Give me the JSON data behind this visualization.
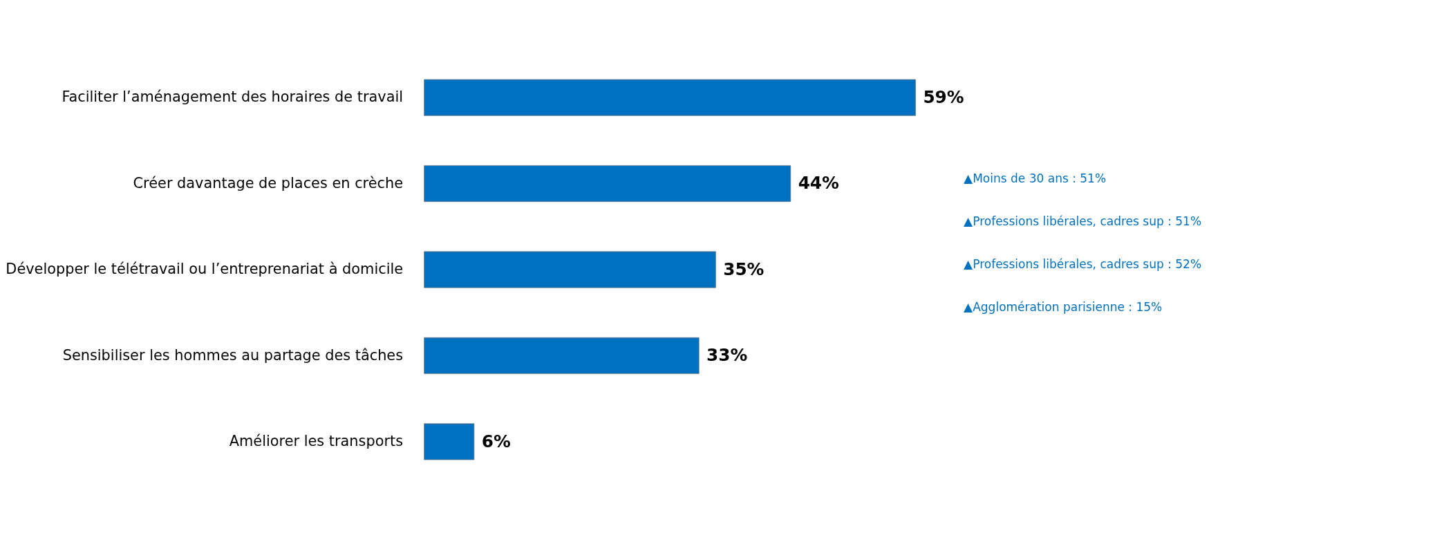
{
  "chart_data": {
    "type": "bar",
    "orientation": "horizontal",
    "grid": false,
    "tick_labels": "y",
    "categories": [
      "Faciliter l’aménagement des horaires de travail",
      "Créer davantage de places en crèche",
      "Développer le télétravail ou l’entreprenariat à domicile",
      "Sensibiliser les hommes au partage des tâches",
      "Améliorer les transports"
    ],
    "series": [
      {
        "color": "#0070c0",
        "values": [
          59,
          44,
          35,
          33,
          6
        ],
        "value_labels": [
          "59%",
          "44%",
          "35%",
          "33%",
          "6%"
        ]
      }
    ],
    "annotations": [
      "▲Moins de 30 ans : 51%",
      "▲Professions libérales, cadres sup : 51%",
      "▲Professions libérales, cadres sup : 52%",
      "▲Agglomération parisienne : 15%"
    ]
  }
}
